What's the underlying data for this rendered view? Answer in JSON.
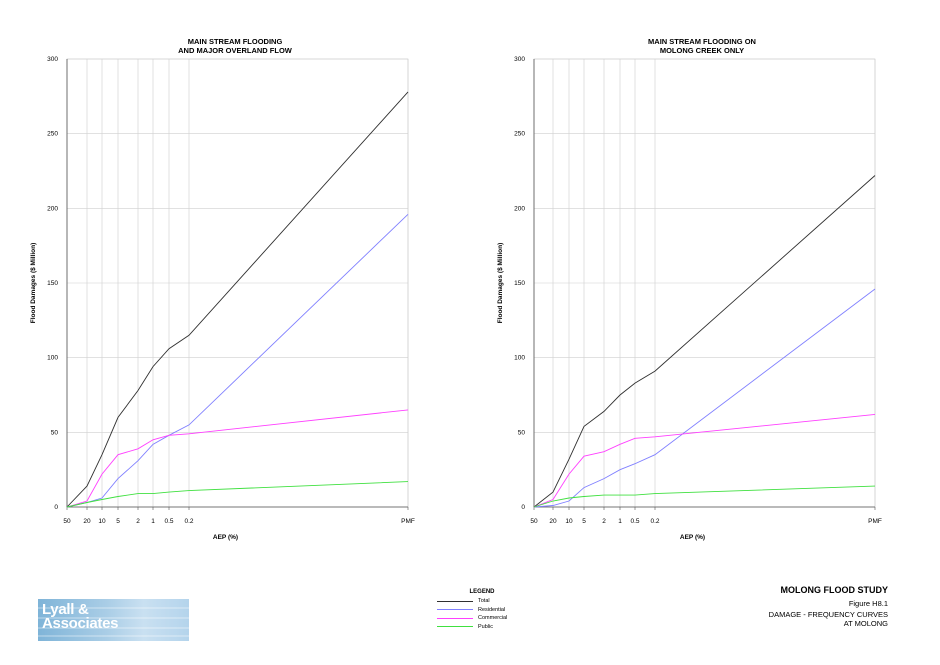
{
  "chart_data": [
    {
      "type": "line",
      "title": "MAIN STREAM FLOODING\nAND MAJOR OVERLAND FLOW",
      "xlabel": "AEP (%)",
      "ylabel": "Flood Damages ($ Million)",
      "categories": [
        "50",
        "20",
        "10",
        "5",
        "2",
        "1",
        "0.5",
        "0.2",
        "PMF"
      ],
      "ylim": [
        0,
        300
      ],
      "yticks": [
        "0",
        "50",
        "100",
        "150",
        "200",
        "250",
        "300"
      ],
      "grid": true,
      "series": [
        {
          "name": "Total",
          "color": "#303030",
          "values": [
            0,
            14,
            35,
            60,
            78,
            94,
            106,
            115,
            278
          ]
        },
        {
          "name": "Residential",
          "color": "#8080ff",
          "values": [
            0,
            3,
            6,
            19,
            31,
            42,
            48,
            55,
            196
          ]
        },
        {
          "name": "Commercial",
          "color": "#ff40ff",
          "values": [
            0,
            4,
            22,
            35,
            39,
            45,
            48,
            49,
            65
          ]
        },
        {
          "name": "Public",
          "color": "#40e040",
          "values": [
            0,
            3,
            5,
            7,
            9,
            9,
            10,
            11,
            17
          ]
        }
      ]
    },
    {
      "type": "line",
      "title": "MAIN STREAM FLOODING ON\nMOLONG CREEK ONLY",
      "xlabel": "AEP (%)",
      "ylabel": "Flood Damages ($ Million)",
      "categories": [
        "50",
        "20",
        "10",
        "5",
        "2",
        "1",
        "0.5",
        "0.2",
        "PMF"
      ],
      "ylim": [
        0,
        300
      ],
      "yticks": [
        "0",
        "50",
        "100",
        "150",
        "200",
        "250",
        "300"
      ],
      "grid": true,
      "series": [
        {
          "name": "Total",
          "color": "#303030",
          "values": [
            0,
            10,
            32,
            54,
            64,
            75,
            83,
            91,
            222
          ]
        },
        {
          "name": "Residential",
          "color": "#8080ff",
          "values": [
            0,
            1,
            4,
            13,
            19,
            25,
            29,
            35,
            146
          ]
        },
        {
          "name": "Commercial",
          "color": "#ff40ff",
          "values": [
            0,
            5,
            22,
            34,
            37,
            42,
            46,
            47,
            62
          ]
        },
        {
          "name": "Public",
          "color": "#40e040",
          "values": [
            0,
            4,
            6,
            7,
            8,
            8,
            8,
            9,
            14
          ]
        }
      ]
    }
  ],
  "legend": {
    "title": "LEGEND",
    "items": [
      {
        "label": "Total",
        "color": "#303030"
      },
      {
        "label": "Residential",
        "color": "#8080ff"
      },
      {
        "label": "Commercial",
        "color": "#ff40ff"
      },
      {
        "label": "Public",
        "color": "#40e040"
      }
    ]
  },
  "footer": {
    "study_title": "MOLONG FLOOD STUDY",
    "figure_number": "Figure H8.1",
    "figure_caption": "DAMAGE - FREQUENCY CURVES\nAT MOLONG"
  },
  "logo": {
    "text": "Lyall &\nAssociates"
  }
}
